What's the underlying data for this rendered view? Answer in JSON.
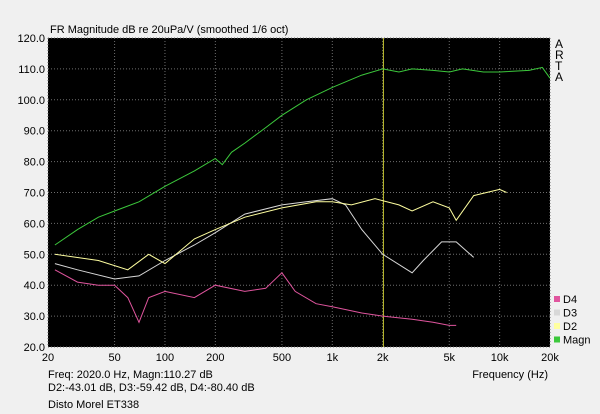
{
  "chart_data": {
    "type": "line",
    "title": "FR Magnitude dB re 20uPa/V (smoothed 1/6 oct)",
    "side_label": "ARTA",
    "x_label": "Frequency (Hz)",
    "readout": [
      "Freq: 2020.0 Hz, Magn:110.27 dB",
      "D2:-43.01 dB, D3:-59.42 dB, D4:-80.40 dB",
      "Disto Morel ET338"
    ],
    "x_log": true,
    "grid": true,
    "legend": "lower right",
    "cursor_x": 2020,
    "cursor_color": "#c8c832",
    "xlim": [
      20,
      20000
    ],
    "xticks": [
      20,
      50,
      100,
      200,
      500,
      {
        "value": 1000,
        "label": "1k"
      },
      {
        "value": 2000,
        "label": "2k"
      },
      {
        "value": 5000,
        "label": "5k"
      },
      {
        "value": 10000,
        "label": "10k"
      },
      {
        "value": 20000,
        "label": "20k"
      }
    ],
    "ylim": [
      20,
      120
    ],
    "yticks": [
      {
        "value": 20,
        "label": "20.0"
      },
      {
        "value": 30,
        "label": "30.0"
      },
      {
        "value": 40,
        "label": "40.0"
      },
      {
        "value": 50,
        "label": "50.0"
      },
      {
        "value": 60,
        "label": "60.0"
      },
      {
        "value": 70,
        "label": "70.0"
      },
      {
        "value": 80,
        "label": "80.0"
      },
      {
        "value": 90,
        "label": "90.0"
      },
      {
        "value": 100,
        "label": "100.0"
      },
      {
        "value": 110,
        "label": "110.0"
      },
      {
        "value": 120,
        "label": "120.0"
      }
    ],
    "series": [
      {
        "name": "D4",
        "color": "#e0559e",
        "x": [
          22,
          30,
          40,
          50,
          60,
          70,
          80,
          100,
          150,
          200,
          300,
          400,
          500,
          600,
          800,
          1000,
          1500,
          2000,
          3000,
          4000,
          5000,
          5500
        ],
        "values": [
          45,
          41,
          40,
          40,
          36,
          28,
          36,
          38,
          36,
          40,
          38,
          39,
          44,
          38,
          34,
          33,
          31,
          30,
          29,
          28,
          27,
          27
        ]
      },
      {
        "name": "D3",
        "color": "#d8d8d8",
        "x": [
          22,
          30,
          50,
          70,
          100,
          150,
          200,
          300,
          500,
          700,
          1000,
          1200,
          1500,
          2000,
          3000,
          3500,
          4500,
          5500,
          7000
        ],
        "values": [
          47,
          45,
          42,
          43,
          48,
          53,
          57,
          63,
          66,
          67,
          68,
          66,
          58,
          50,
          44,
          48,
          54,
          54,
          49
        ]
      },
      {
        "name": "D2",
        "color": "#ffffa0",
        "x": [
          22,
          40,
          60,
          80,
          100,
          150,
          200,
          300,
          500,
          800,
          1000,
          1300,
          1800,
          2500,
          3000,
          4000,
          5000,
          5500,
          7000,
          10000,
          11000
        ],
        "values": [
          50,
          48,
          45,
          50,
          47,
          55,
          58,
          62,
          65,
          67,
          67,
          66,
          68,
          66,
          64,
          67,
          65,
          61,
          69,
          71,
          70
        ]
      },
      {
        "name": "Magn",
        "color": "#3cc83c",
        "x": [
          22,
          30,
          40,
          50,
          70,
          100,
          150,
          200,
          220,
          250,
          300,
          400,
          500,
          700,
          1000,
          1500,
          2000,
          2500,
          3000,
          4000,
          5000,
          6000,
          8000,
          10000,
          15000,
          18000,
          20000
        ],
        "values": [
          53,
          58,
          62,
          64,
          67,
          72,
          77,
          81,
          79,
          83,
          86,
          91,
          95,
          100,
          104,
          108,
          110,
          109,
          110,
          109.5,
          109,
          110,
          109,
          109,
          109.5,
          110.5,
          107
        ]
      }
    ]
  }
}
